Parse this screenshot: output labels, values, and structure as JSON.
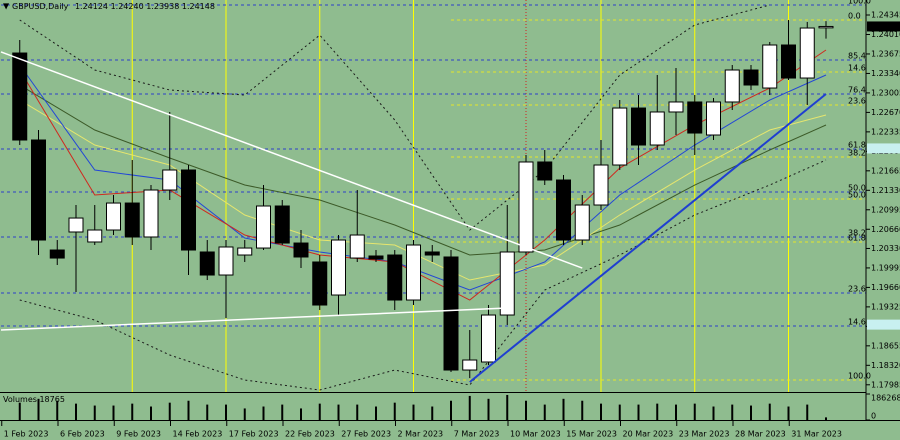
{
  "chart_data": {
    "type": "candlestick",
    "symbol": "GBPUSD,Daily",
    "ohlc_labels": [
      "1.24124",
      "1.24240",
      "1.23938",
      "1.24148"
    ],
    "categories": [
      "1 Feb 2023",
      null,
      null,
      "6 Feb 2023",
      null,
      null,
      "9 Feb 2023",
      null,
      null,
      "14 Feb 2023",
      null,
      null,
      "17 Feb 2023",
      null,
      null,
      "22 Feb 2023",
      null,
      null,
      "27 Feb 2023",
      null,
      null,
      "2 Mar 2023",
      null,
      null,
      "7 Mar 2023",
      null,
      null,
      "10 Mar 2023",
      null,
      null,
      "15 Mar 2023",
      null,
      null,
      "20 Mar 2023",
      null,
      null,
      "23 Mar 2023",
      null,
      null,
      "28 Mar 2023",
      null,
      null,
      "31 Mar 2023",
      null
    ],
    "open": [
      1.23691,
      1.22195,
      1.20303,
      1.20613,
      1.20441,
      1.20647,
      1.21111,
      1.20527,
      1.21335,
      1.21679,
      1.20269,
      1.19873,
      1.20217,
      1.20337,
      1.2106,
      1.20423,
      1.20097,
      1.19529,
      1.20165,
      1.202,
      1.20217,
      1.19443,
      1.20269,
      1.20183,
      1.18239,
      1.18377,
      1.19185,
      1.20269,
      1.21817,
      1.21507,
      1.20475,
      1.21077,
      1.21765,
      1.22745,
      1.22109,
      1.22677,
      1.22849,
      1.22281,
      1.22849,
      1.23399,
      1.23089,
      1.23829,
      1.23261,
      1.24124
    ],
    "high": [
      1.23915,
      1.22367,
      1.20475,
      1.21077,
      1.21077,
      1.21249,
      1.21851,
      1.21421,
      1.22677,
      1.21765,
      1.20475,
      1.20475,
      1.20475,
      1.21421,
      1.21163,
      1.20647,
      1.20217,
      1.20561,
      1.21335,
      1.20303,
      1.20303,
      1.20475,
      1.20389,
      1.20303,
      1.18927,
      1.19357,
      1.21077,
      1.21937,
      1.22023,
      1.21593,
      1.21249,
      1.22195,
      1.22883,
      1.22969,
      1.23313,
      1.23433,
      1.22969,
      1.22917,
      1.23485,
      1.23485,
      1.23881,
      1.24259,
      1.24225,
      1.2424
    ],
    "low": [
      1.22109,
      1.20217,
      1.20045,
      1.19581,
      1.20389,
      1.20561,
      1.20389,
      1.20303,
      1.21163,
      1.19873,
      1.19787,
      1.19133,
      1.20097,
      1.20303,
      1.20389,
      1.19993,
      1.19271,
      1.19185,
      1.20097,
      1.20097,
      1.19271,
      1.19357,
      1.20097,
      1.18205,
      1.18101,
      1.18325,
      1.19013,
      1.20217,
      1.21421,
      1.20389,
      1.20389,
      1.20991,
      1.21679,
      1.21765,
      1.22023,
      1.22281,
      1.21937,
      1.22195,
      1.22711,
      1.23055,
      1.22969,
      1.23227,
      1.22797,
      1.23938
    ],
    "close": [
      1.22195,
      1.20475,
      1.20165,
      1.20853,
      1.20647,
      1.21111,
      1.20527,
      1.21335,
      1.21679,
      1.20303,
      1.19873,
      1.20355,
      1.20337,
      1.2106,
      1.20423,
      1.20183,
      1.19357,
      1.20475,
      1.20561,
      1.20148,
      1.19443,
      1.20389,
      1.20217,
      1.18239,
      1.18411,
      1.19185,
      1.20269,
      1.21817,
      1.21507,
      1.20475,
      1.21077,
      1.21765,
      1.22745,
      1.22109,
      1.22677,
      1.22849,
      1.22315,
      1.22849,
      1.23399,
      1.23141,
      1.23829,
      1.23261,
      1.24121,
      1.24148
    ],
    "up_color": "#ffffff",
    "down_color": "#000000",
    "ylim": [
      1.17861,
      1.24603
    ],
    "yticks": [
      1.24345,
      {
        "value": 1.2401,
        "label": "1.24010"
      },
      1.23675,
      {
        "value": 1.2334,
        "label": "1.23340"
      },
      1.23005,
      {
        "value": 1.2267,
        "label": "1.22670"
      },
      1.22335,
      {
        "value": 1.22,
        "label": "1.22000"
      },
      1.21665,
      {
        "value": 1.2133,
        "label": "1.21330"
      },
      1.20995,
      {
        "value": 1.2066,
        "label": "1.20660"
      },
      {
        "value": 1.2033,
        "label": "1.20330"
      },
      1.19995,
      {
        "value": 1.1966,
        "label": "1.19660"
      },
      1.19325,
      {
        "value": 1.1899,
        "label": "1.18990"
      },
      1.18655,
      {
        "value": 1.1832,
        "label": "1.18320"
      },
      1.17985
    ],
    "indicators": [
      {
        "color": "#1a1a1a",
        "dash": true,
        "x": [
          0,
          4,
          8,
          12,
          16,
          20,
          24,
          28,
          32,
          36,
          40,
          43
        ],
        "values": [
          1.24259,
          1.23399,
          1.23055,
          1.22969,
          1.23999,
          1.22539,
          1.20647,
          1.21679,
          1.23313,
          1.24173,
          1.24517,
          null
        ]
      },
      {
        "color": "#1a1a1a",
        "dash": true,
        "x": [
          0,
          4,
          8,
          12,
          16,
          20,
          24,
          28,
          32,
          36,
          40,
          43
        ],
        "values": [
          1.19443,
          1.19099,
          1.18497,
          1.18067,
          1.17895,
          1.18239,
          1.17981,
          1.19615,
          1.20217,
          1.20905,
          1.21421,
          1.21851
        ]
      },
      {
        "color": "#3c5a28",
        "dash": false,
        "x": [
          0,
          4,
          8,
          12,
          16,
          20,
          24,
          28,
          32,
          36,
          40,
          43
        ],
        "values": [
          1.23141,
          1.22367,
          1.21885,
          1.21421,
          1.21163,
          1.20733,
          1.20217,
          1.20303,
          1.20733,
          1.21421,
          1.22023,
          1.22453
        ]
      },
      {
        "color": "#e6e66e",
        "dash": false,
        "x": [
          0,
          4,
          8,
          12,
          16,
          20,
          24,
          28,
          32,
          36,
          40,
          43
        ],
        "values": [
          1.22883,
          1.22109,
          1.21765,
          1.20905,
          1.20475,
          1.20389,
          1.19787,
          1.20045,
          1.20905,
          1.21679,
          1.22367,
          1.22625
        ]
      },
      {
        "color": "#2347d6",
        "dash": false,
        "x": [
          0,
          4,
          8,
          12,
          16,
          20,
          24,
          28,
          32,
          36,
          40,
          43
        ],
        "values": [
          1.23485,
          1.21679,
          1.21507,
          1.20509,
          1.20269,
          1.20097,
          1.19615,
          1.20097,
          1.21249,
          1.22109,
          1.22883,
          1.23313
        ]
      },
      {
        "color": "#d0281e",
        "dash": false,
        "x": [
          0,
          4,
          8,
          12,
          16,
          20,
          24,
          28,
          32,
          36,
          40,
          43
        ],
        "values": [
          1.23399,
          1.21249,
          1.21335,
          1.20561,
          1.20217,
          1.20097,
          1.19443,
          1.20475,
          1.21713,
          1.22453,
          1.23089,
          1.23743
        ]
      }
    ],
    "fib": [
      {
        "color": "#2d3fc8",
        "start": -1,
        "levels": [
          {
            "value": 1.24517,
            "label": "100.0"
          },
          {
            "value": 1.23571,
            "label": "85.4"
          },
          {
            "value": 1.22986,
            "label": "76.4"
          },
          {
            "value": 1.2204,
            "label": "61.8"
          },
          {
            "value": 1.21301,
            "label": "50.0"
          },
          {
            "value": 1.20527,
            "label": "38.2"
          },
          {
            "value": 1.19563,
            "label": "23.6"
          },
          {
            "value": 1.18996,
            "label": "14.6"
          }
        ]
      },
      {
        "color": "#e6e62a",
        "start": 23,
        "levels": [
          {
            "value": 1.24259,
            "label": "0.0"
          },
          {
            "value": 1.23365,
            "label": "14.6"
          },
          {
            "value": 1.22797,
            "label": "23.6"
          },
          {
            "value": 1.21903,
            "label": "38.2"
          },
          {
            "value": 1.2118,
            "label": "50.0"
          },
          {
            "value": 1.20441,
            "label": "61.8"
          },
          {
            "value": 1.18067,
            "label": "100.0"
          }
        ]
      }
    ],
    "trendlines": [
      {
        "color": "#ffffff",
        "x": [
          -1,
          30
        ],
        "values": [
          1.23709,
          1.19993
        ]
      },
      {
        "color": "#ffffff",
        "x": [
          -1,
          26
        ],
        "values": [
          1.18927,
          1.19305
        ]
      },
      {
        "color": "#1f3fd0",
        "x": [
          24,
          43
        ],
        "values": [
          1.18033,
          1.22986
        ]
      }
    ],
    "highlight_levels": {
      "color": "#c8f0f0",
      "values": [
        1.2205,
        1.1902
      ]
    },
    "volume": {
      "label": "Volumes",
      "color": "#000000",
      "ylim": [
        0,
        186268
      ],
      "yticks": [
        186268,
        0
      ],
      "values": [
        124200,
        151800,
        138000,
        117300,
        103500,
        103500,
        117300,
        96600,
        124200,
        138000,
        110400,
        110400,
        82800,
        96600,
        110400,
        82800,
        117300,
        110400,
        110400,
        96600,
        124200,
        110400,
        96600,
        138000,
        172500,
        151800,
        179400,
        138000,
        110400,
        151800,
        138000,
        117300,
        110400,
        110400,
        117300,
        110400,
        117300,
        96600,
        110400,
        103500,
        117300,
        96600,
        110400,
        18765
      ]
    }
  }
}
